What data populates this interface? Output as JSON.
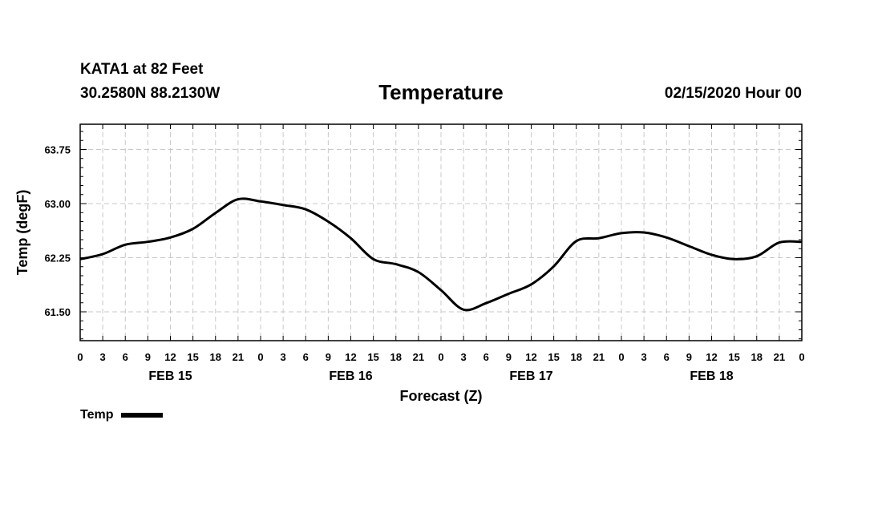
{
  "header": {
    "station": "KATA1 at 82 Feet",
    "coords": "30.2580N 88.2130W",
    "title": "Temperature",
    "stamp": "02/15/2020 Hour 00"
  },
  "legend": {
    "label": "Temp"
  },
  "chart_data": {
    "type": "line",
    "title": "Temperature",
    "xlabel": "Forecast (Z)",
    "ylabel": "Temp (degF)",
    "xlim": [
      0,
      96
    ],
    "ylim": [
      61.1,
      64.1
    ],
    "yticks": [
      61.5,
      62.25,
      63.0,
      63.75
    ],
    "ytick_labels": [
      "61.50",
      "62.25",
      "63.00",
      "63.75"
    ],
    "xtick_hours": [
      0,
      3,
      6,
      9,
      12,
      15,
      18,
      21,
      24,
      27,
      30,
      33,
      36,
      39,
      42,
      45,
      48,
      51,
      54,
      57,
      60,
      63,
      66,
      69,
      72,
      75,
      78,
      81,
      84,
      87,
      90,
      93,
      96
    ],
    "xtick_labels": [
      "0",
      "3",
      "6",
      "9",
      "12",
      "15",
      "18",
      "21",
      "0",
      "3",
      "6",
      "9",
      "12",
      "15",
      "18",
      "21",
      "0",
      "3",
      "6",
      "9",
      "12",
      "15",
      "18",
      "21",
      "0",
      "3",
      "6",
      "9",
      "12",
      "15",
      "18",
      "21",
      "0"
    ],
    "day_labels": [
      {
        "label": "FEB 15",
        "hour": 12
      },
      {
        "label": "FEB 16",
        "hour": 36
      },
      {
        "label": "FEB 17",
        "hour": 60
      },
      {
        "label": "FEB 18",
        "hour": 84
      }
    ],
    "grid": true,
    "legend_position": "bottom-left",
    "series": [
      {
        "name": "Temp",
        "color": "#000000",
        "x": [
          0,
          3,
          6,
          9,
          12,
          15,
          18,
          21,
          24,
          27,
          30,
          33,
          36,
          39,
          42,
          45,
          48,
          51,
          54,
          57,
          60,
          63,
          66,
          69,
          72,
          75,
          78,
          81,
          84,
          87,
          90,
          93,
          96
        ],
        "y": [
          62.23,
          62.3,
          62.43,
          62.47,
          62.53,
          62.65,
          62.87,
          63.06,
          63.03,
          62.98,
          62.92,
          62.75,
          62.52,
          62.23,
          62.16,
          62.05,
          61.8,
          61.53,
          61.62,
          61.75,
          61.88,
          62.13,
          62.48,
          62.52,
          62.59,
          62.6,
          62.53,
          62.41,
          62.29,
          62.23,
          62.27,
          62.46,
          62.47
        ]
      }
    ]
  }
}
